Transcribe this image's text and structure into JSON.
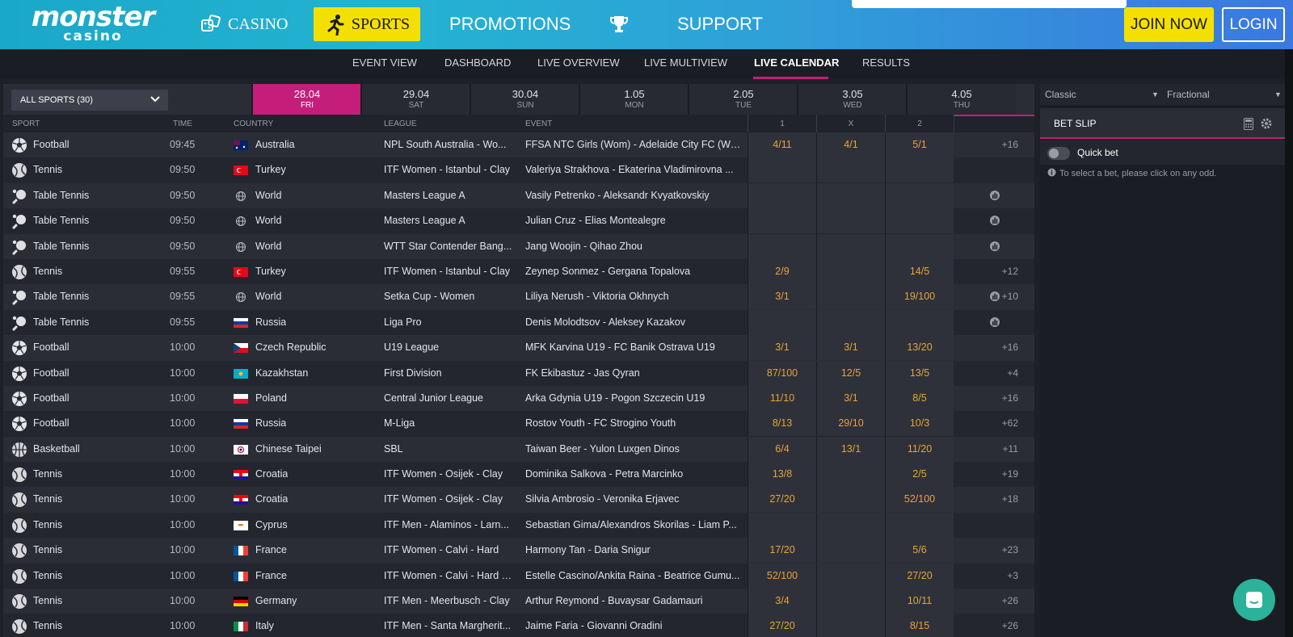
{
  "header": {
    "logo_line1": "monster",
    "logo_line2": "casino",
    "nav": {
      "casino": "CASINO",
      "sports": "SPORTS",
      "promotions": "PROMOTIONS",
      "support": "SUPPORT"
    },
    "join": "JOIN NOW",
    "login": "LOGIN"
  },
  "subnav": [
    "EVENT VIEW",
    "DASHBOARD",
    "LIVE OVERVIEW",
    "LIVE MULTIVIEW",
    "LIVE CALENDAR",
    "RESULTS"
  ],
  "filter": {
    "sport_select": "ALL SPORTS (30)",
    "days": [
      {
        "date": "28.04",
        "dow": "FRI"
      },
      {
        "date": "29.04",
        "dow": "SAT"
      },
      {
        "date": "30.04",
        "dow": "SUN"
      },
      {
        "date": "1.05",
        "dow": "MON"
      },
      {
        "date": "2.05",
        "dow": "TUE"
      },
      {
        "date": "3.05",
        "dow": "WED"
      },
      {
        "date": "4.05",
        "dow": "THU"
      }
    ]
  },
  "table": {
    "headers": {
      "sport": "SPORT",
      "time": "TIME",
      "country": "COUNTRY",
      "league": "LEAGUE",
      "event": "EVENT",
      "o1": "1",
      "ox": "X",
      "o2": "2"
    },
    "rows": [
      {
        "sport": "Football",
        "icon": "football-icon",
        "time": "09:45",
        "country": "Australia",
        "flag": "australia",
        "league": "NPL South Australia - Wo...",
        "event": "FFSA NTC Girls (Wom) - Adelaide City FC (Wo...",
        "o1": "4/11",
        "ox": "4/1",
        "o2": "5/1",
        "more": "+16",
        "stats": false
      },
      {
        "sport": "Tennis",
        "icon": "tennis-icon",
        "time": "09:50",
        "country": "Turkey",
        "flag": "turkey",
        "league": "ITF Women - Istanbul - Clay",
        "event": "Valeriya Strakhova - Ekaterina Vladimirovna ...",
        "o1": "",
        "ox": "",
        "o2": "",
        "more": "",
        "stats": false
      },
      {
        "sport": "Table Tennis",
        "icon": "table-tennis-icon",
        "time": "09:50",
        "country": "World",
        "flag": "world",
        "league": "Masters League A",
        "event": "Vasily Petrenko - Aleksandr Kvyatkovskiy",
        "o1": "",
        "ox": "",
        "o2": "",
        "more": "",
        "stats": true
      },
      {
        "sport": "Table Tennis",
        "icon": "table-tennis-icon",
        "time": "09:50",
        "country": "World",
        "flag": "world",
        "league": "Masters League A",
        "event": "Julian Cruz - Elias Montealegre",
        "o1": "",
        "ox": "",
        "o2": "",
        "more": "",
        "stats": true
      },
      {
        "sport": "Table Tennis",
        "icon": "table-tennis-icon",
        "time": "09:50",
        "country": "World",
        "flag": "world",
        "league": "WTT Star Contender Bang...",
        "event": "Jang Woojin - Qihao Zhou",
        "o1": "",
        "ox": "",
        "o2": "",
        "more": "",
        "stats": true
      },
      {
        "sport": "Tennis",
        "icon": "tennis-icon",
        "time": "09:55",
        "country": "Turkey",
        "flag": "turkey",
        "league": "ITF Women - Istanbul - Clay",
        "event": "Zeynep Sonmez - Gergana Topalova",
        "o1": "2/9",
        "ox": "",
        "o2": "14/5",
        "more": "+12",
        "stats": false
      },
      {
        "sport": "Table Tennis",
        "icon": "table-tennis-icon",
        "time": "09:55",
        "country": "World",
        "flag": "world",
        "league": "Setka Cup - Women",
        "event": "Liliya Nerush - Viktoria Okhnych",
        "o1": "3/1",
        "ox": "",
        "o2": "19/100",
        "more": "+10",
        "stats": true
      },
      {
        "sport": "Table Tennis",
        "icon": "table-tennis-icon",
        "time": "09:55",
        "country": "Russia",
        "flag": "russia",
        "league": "Liga Pro",
        "event": "Denis Molodtsov - Aleksey Kazakov",
        "o1": "",
        "ox": "",
        "o2": "",
        "more": "",
        "stats": true
      },
      {
        "sport": "Football",
        "icon": "football-icon",
        "time": "10:00",
        "country": "Czech Republic",
        "flag": "czech",
        "league": "U19 League",
        "event": "MFK Karvina U19 - FC Banik Ostrava U19",
        "o1": "3/1",
        "ox": "3/1",
        "o2": "13/20",
        "more": "+16",
        "stats": false
      },
      {
        "sport": "Football",
        "icon": "football-icon",
        "time": "10:00",
        "country": "Kazakhstan",
        "flag": "kazakhstan",
        "league": "First Division",
        "event": "FK Ekibastuz - Jas Qyran",
        "o1": "87/100",
        "ox": "12/5",
        "o2": "13/5",
        "more": "+4",
        "stats": false
      },
      {
        "sport": "Football",
        "icon": "football-icon",
        "time": "10:00",
        "country": "Poland",
        "flag": "poland",
        "league": "Central Junior League",
        "event": "Arka Gdynia U19 - Pogon Szczecin U19",
        "o1": "11/10",
        "ox": "3/1",
        "o2": "8/5",
        "more": "+16",
        "stats": false
      },
      {
        "sport": "Football",
        "icon": "football-icon",
        "time": "10:00",
        "country": "Russia",
        "flag": "russia",
        "league": "M-Liga",
        "event": "Rostov Youth - FC Strogino Youth",
        "o1": "8/13",
        "ox": "29/10",
        "o2": "10/3",
        "more": "+62",
        "stats": false
      },
      {
        "sport": "Basketball",
        "icon": "basketball-icon",
        "time": "10:00",
        "country": "Chinese Taipei",
        "flag": "taipei",
        "league": "SBL",
        "event": "Taiwan Beer - Yulon Luxgen Dinos",
        "o1": "6/4",
        "ox": "13/1",
        "o2": "11/20",
        "more": "+11",
        "stats": false
      },
      {
        "sport": "Tennis",
        "icon": "tennis-icon",
        "time": "10:00",
        "country": "Croatia",
        "flag": "croatia",
        "league": "ITF Women - Osijek - Clay",
        "event": "Dominika Salkova - Petra Marcinko",
        "o1": "13/8",
        "ox": "",
        "o2": "2/5",
        "more": "+19",
        "stats": false
      },
      {
        "sport": "Tennis",
        "icon": "tennis-icon",
        "time": "10:00",
        "country": "Croatia",
        "flag": "croatia",
        "league": "ITF Women - Osijek - Clay",
        "event": "Silvia Ambrosio - Veronika Erjavec",
        "o1": "27/20",
        "ox": "",
        "o2": "52/100",
        "more": "+18",
        "stats": false
      },
      {
        "sport": "Tennis",
        "icon": "tennis-icon",
        "time": "10:00",
        "country": "Cyprus",
        "flag": "cyprus",
        "league": "ITF Men - Alaminos - Larn...",
        "event": "Sebastian Gima/Alexandros Skorilas - Liam P...",
        "o1": "",
        "ox": "",
        "o2": "",
        "more": "",
        "stats": false
      },
      {
        "sport": "Tennis",
        "icon": "tennis-icon",
        "time": "10:00",
        "country": "France",
        "flag": "france",
        "league": "ITF Women - Calvi - Hard",
        "event": "Harmony Tan - Daria Snigur",
        "o1": "17/20",
        "ox": "",
        "o2": "5/6",
        "more": "+23",
        "stats": false
      },
      {
        "sport": "Tennis",
        "icon": "tennis-icon",
        "time": "10:00",
        "country": "France",
        "flag": "france",
        "league": "ITF Women - Calvi - Hard (...",
        "event": "Estelle Cascino/Ankita Raina - Beatrice Gumu...",
        "o1": "52/100",
        "ox": "",
        "o2": "27/20",
        "more": "+3",
        "stats": false
      },
      {
        "sport": "Tennis",
        "icon": "tennis-icon",
        "time": "10:00",
        "country": "Germany",
        "flag": "germany",
        "league": "ITF Men - Meerbusch - Clay",
        "event": "Arthur Reymond - Buvaysar Gadamauri",
        "o1": "3/4",
        "ox": "",
        "o2": "10/11",
        "more": "+26",
        "stats": false
      },
      {
        "sport": "Tennis",
        "icon": "tennis-icon",
        "time": "10:00",
        "country": "Italy",
        "flag": "italy",
        "league": "ITF Men - Santa Margherit...",
        "event": "Jaime Faria - Giovanni Oradini",
        "o1": "27/20",
        "ox": "",
        "o2": "8/15",
        "more": "+26",
        "stats": false
      }
    ]
  },
  "betslip": {
    "format": "Classic",
    "odds_format": "Fractional",
    "title": "BET SLIP",
    "quick_bet": "Quick bet",
    "hint": "To select a bet, please click on any odd."
  },
  "colors": {
    "accent": "#c41e7a",
    "cta": "#f4e000",
    "odds": "#e7a43a"
  }
}
